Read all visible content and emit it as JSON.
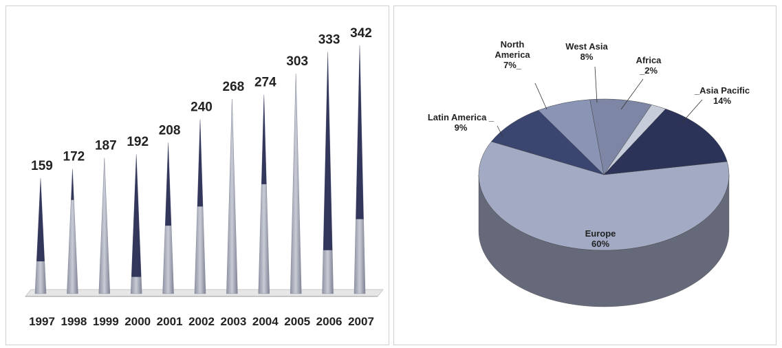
{
  "chart_data": [
    {
      "type": "bar",
      "title": "",
      "xlabel": "",
      "ylabel": "",
      "categories": [
        "1997",
        "1998",
        "1999",
        "2000",
        "2001",
        "2002",
        "2003",
        "2004",
        "2005",
        "2006",
        "2007"
      ],
      "values": [
        159,
        172,
        187,
        192,
        208,
        240,
        268,
        274,
        303,
        333,
        342
      ],
      "ylim": [
        0,
        360
      ],
      "grid": false,
      "colors": {
        "dark": "#2b2f55",
        "light": "#a5a9b8",
        "floor": "#e6e6e6"
      }
    },
    {
      "type": "pie",
      "title": "",
      "slices": [
        {
          "name": "Europe",
          "value": 60,
          "label": "60%",
          "color": "#a3aac4"
        },
        {
          "name": "Latin America",
          "value": 9,
          "label": "9%",
          "color": "#3a4570"
        },
        {
          "name": "North America",
          "value": 7,
          "label": "7%",
          "color": "#8a95b6"
        },
        {
          "name": "West Asia",
          "value": 8,
          "label": "8%",
          "color": "#7d86a4"
        },
        {
          "name": "Africa",
          "value": 2,
          "label": "2%",
          "color": "#c7ccdb"
        },
        {
          "name": "Asia Pacific",
          "value": 14,
          "label": "14%",
          "color": "#2c3358"
        }
      ],
      "pie_labels": {
        "north_america_l1": "North",
        "north_america_l2": "America"
      }
    }
  ]
}
